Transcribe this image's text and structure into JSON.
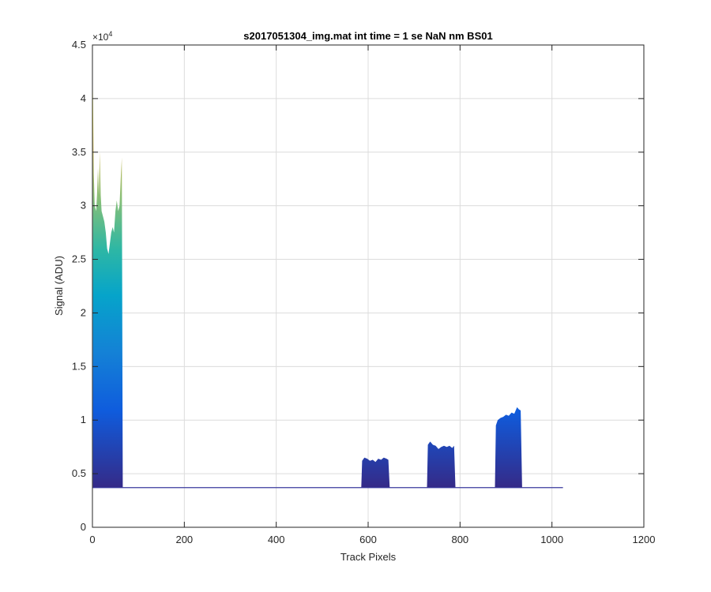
{
  "chart_data": {
    "type": "area",
    "title": "s2017051304_img.mat int time = 1 se  NaN nm BS01",
    "xlabel": "Track Pixels",
    "ylabel": "Signal (ADU)",
    "xlim": [
      0,
      1200
    ],
    "ylim": [
      0,
      45000
    ],
    "x_ticks": [
      0,
      200,
      400,
      600,
      800,
      1000,
      1200
    ],
    "y_ticks": [
      0,
      5000,
      10000,
      15000,
      20000,
      25000,
      30000,
      35000,
      40000,
      45000
    ],
    "y_tick_labels": [
      "0",
      "0.5",
      "1",
      "1.5",
      "2",
      "2.5",
      "3",
      "3.5",
      "4",
      "4.5"
    ],
    "y_exponent_base": "×10",
    "y_exponent_power": "4",
    "grid": true,
    "colormap": "parula",
    "baseline": 3700,
    "x_range": [
      1,
      1024
    ],
    "series": [
      {
        "points": [
          [
            1,
            41000
          ],
          [
            3,
            33000
          ],
          [
            5,
            30000
          ],
          [
            8,
            29500
          ],
          [
            10,
            31000
          ],
          [
            12,
            33500
          ],
          [
            14,
            31000
          ],
          [
            16,
            35000
          ],
          [
            18,
            31000
          ],
          [
            20,
            29500
          ],
          [
            23,
            29000
          ],
          [
            26,
            28500
          ],
          [
            29,
            27500
          ],
          [
            32,
            26000
          ],
          [
            35,
            25500
          ],
          [
            38,
            26500
          ],
          [
            41,
            27500
          ],
          [
            44,
            28000
          ],
          [
            47,
            27500
          ],
          [
            50,
            29500
          ],
          [
            53,
            30500
          ],
          [
            56,
            29500
          ],
          [
            59,
            30000
          ],
          [
            62,
            33000
          ],
          [
            64,
            34500
          ],
          [
            66,
            3700
          ]
        ]
      },
      {
        "points": [
          [
            585,
            3700
          ],
          [
            587,
            6200
          ],
          [
            592,
            6500
          ],
          [
            598,
            6400
          ],
          [
            604,
            6200
          ],
          [
            610,
            6300
          ],
          [
            616,
            6100
          ],
          [
            622,
            6400
          ],
          [
            628,
            6300
          ],
          [
            634,
            6500
          ],
          [
            640,
            6400
          ],
          [
            644,
            6300
          ],
          [
            647,
            3700
          ]
        ]
      },
      {
        "points": [
          [
            728,
            3700
          ],
          [
            730,
            7700
          ],
          [
            735,
            8000
          ],
          [
            741,
            7700
          ],
          [
            747,
            7600
          ],
          [
            753,
            7300
          ],
          [
            759,
            7500
          ],
          [
            765,
            7600
          ],
          [
            771,
            7500
          ],
          [
            777,
            7600
          ],
          [
            783,
            7400
          ],
          [
            787,
            7600
          ],
          [
            790,
            3700
          ]
        ]
      },
      {
        "points": [
          [
            876,
            3700
          ],
          [
            878,
            9500
          ],
          [
            882,
            10000
          ],
          [
            888,
            10200
          ],
          [
            894,
            10300
          ],
          [
            900,
            10500
          ],
          [
            906,
            10400
          ],
          [
            912,
            10700
          ],
          [
            918,
            10600
          ],
          [
            924,
            11200
          ],
          [
            928,
            11000
          ],
          [
            932,
            10900
          ],
          [
            935,
            3700
          ]
        ]
      }
    ]
  }
}
